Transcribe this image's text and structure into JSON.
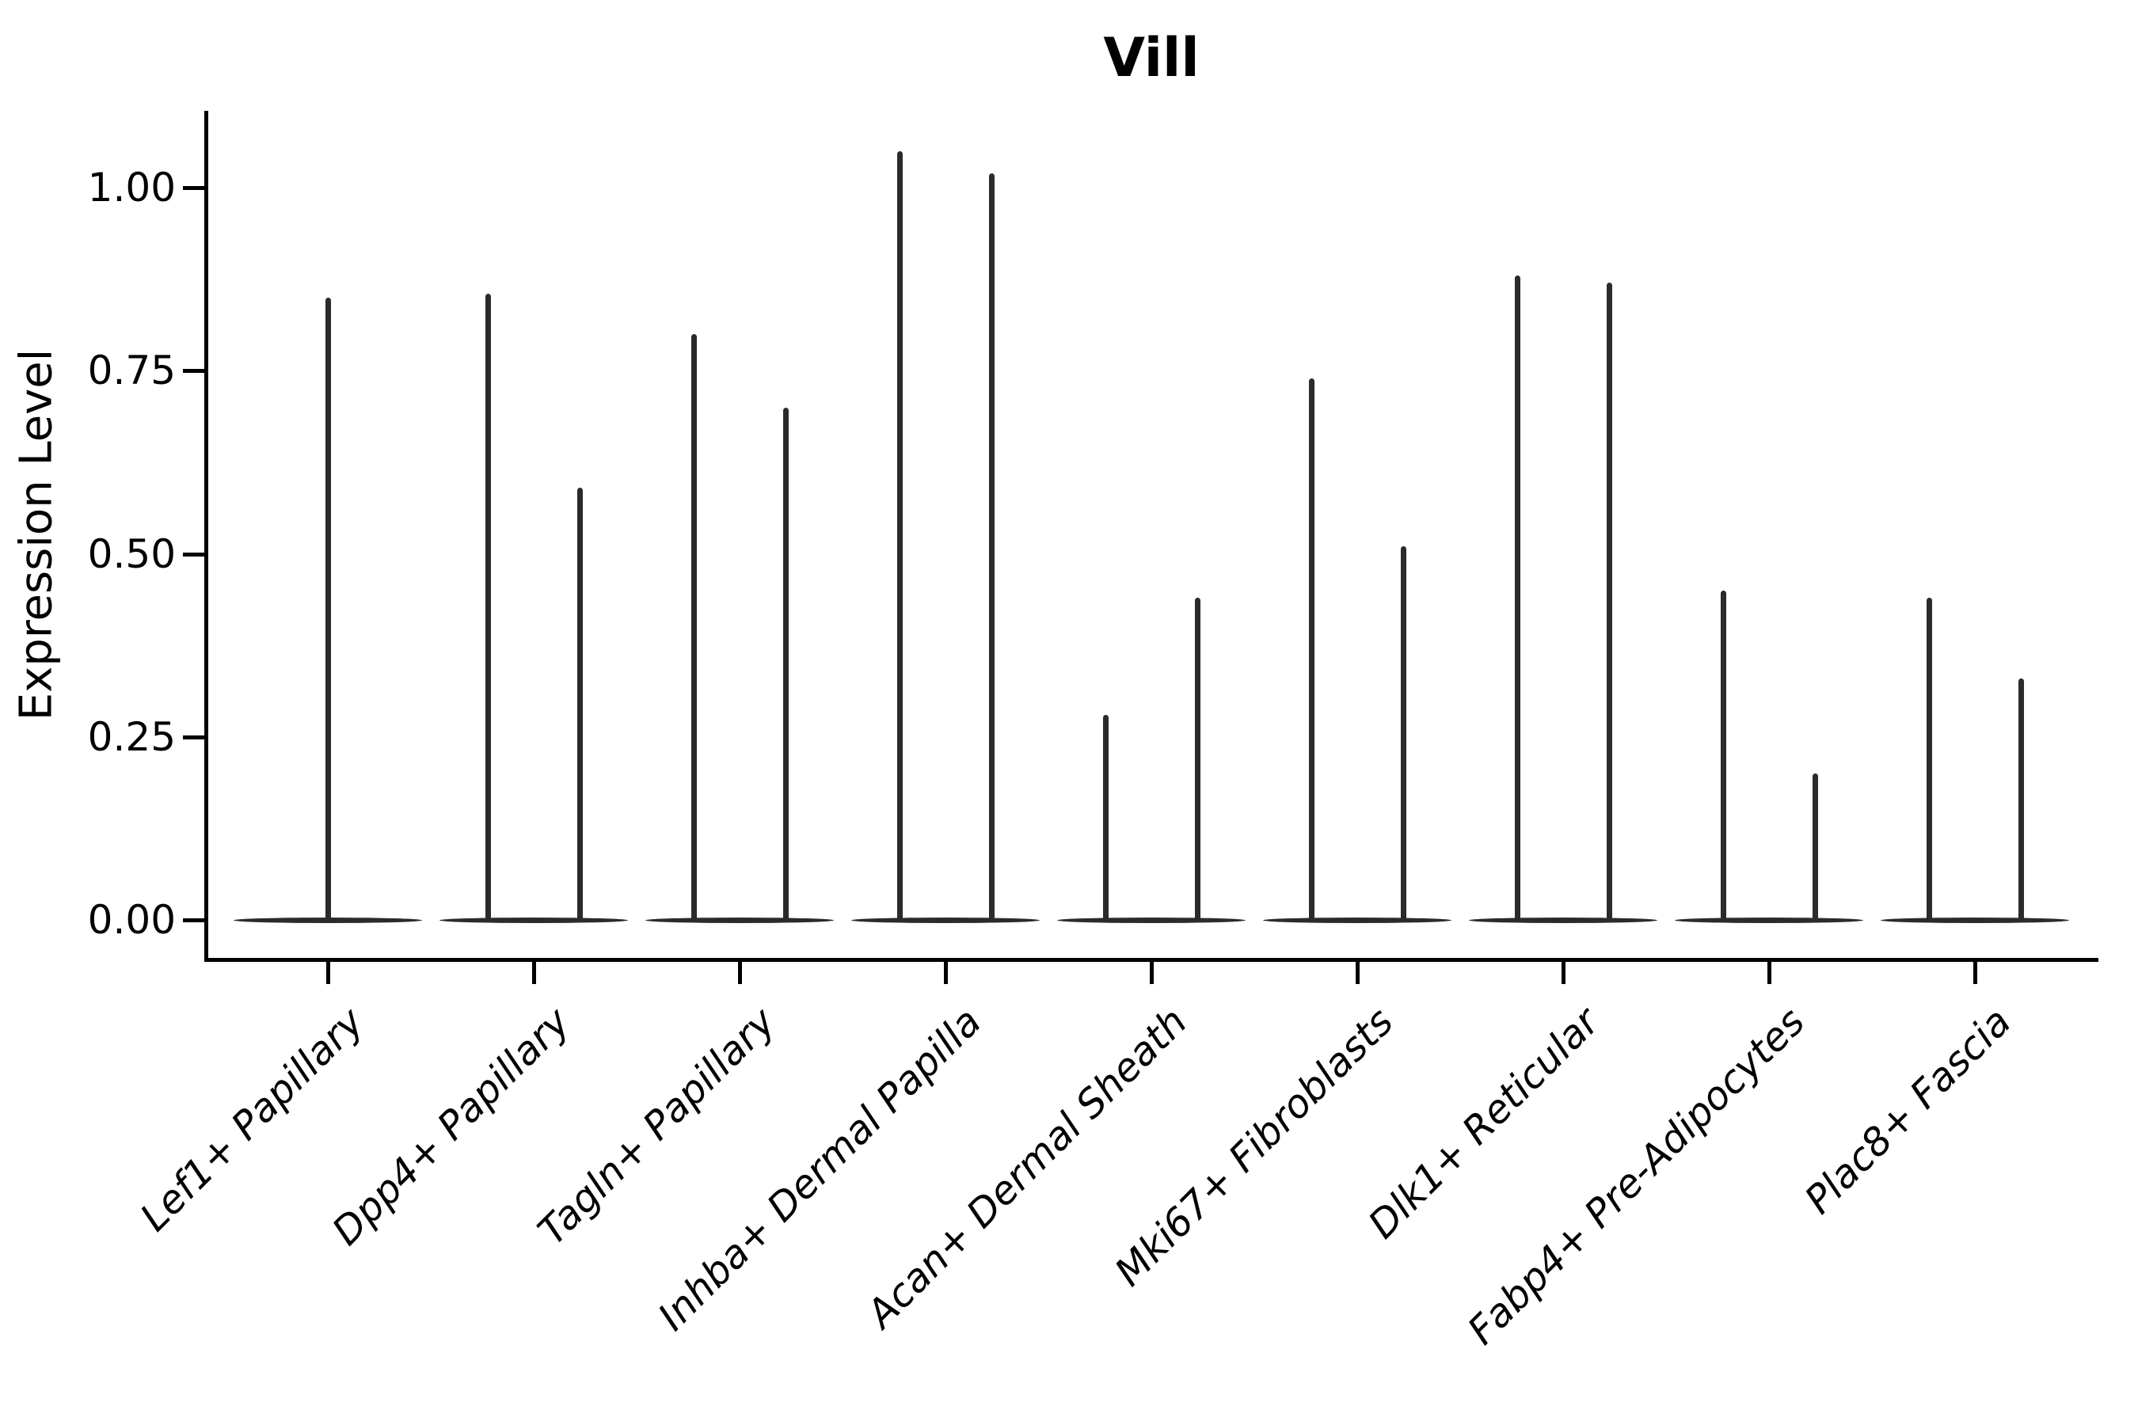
{
  "chart_data": {
    "type": "violin",
    "title": "Vill",
    "ylabel": "Expression Level",
    "xlabel": "",
    "ylim": [
      -0.05,
      1.1
    ],
    "grid": false,
    "legend": "none",
    "y_ticks": [
      {
        "label": "0.00",
        "value": 0.0
      },
      {
        "label": "0.25",
        "value": 0.25
      },
      {
        "label": "0.50",
        "value": 0.5
      },
      {
        "label": "0.75",
        "value": 0.75
      },
      {
        "label": "1.00",
        "value": 1.0
      }
    ],
    "description": "Single-gene violin plot; expression is near zero for most cells so each violin renders as a flat base at 0 with a thin spike up to the maximum expression value. Categories 2-9 contain two side-by-side violins; category 1 contains one full-width violin.",
    "categories": [
      {
        "label": "Lef1+ Papillary",
        "violins": [
          {
            "dx": 0,
            "max": 0.85
          }
        ]
      },
      {
        "label": "Dpp4+ Papillary",
        "violins": [
          {
            "dx": -58,
            "max": 0.855
          },
          {
            "dx": 58,
            "max": 0.59
          }
        ]
      },
      {
        "label": "Tagln+ Papillary",
        "violins": [
          {
            "dx": -58,
            "max": 0.8
          },
          {
            "dx": 58,
            "max": 0.7
          }
        ]
      },
      {
        "label": "Inhba+ Dermal Papilla",
        "violins": [
          {
            "dx": -58,
            "max": 1.05
          },
          {
            "dx": 58,
            "max": 1.02
          }
        ]
      },
      {
        "label": "Acan+ Dermal Sheath",
        "violins": [
          {
            "dx": -58,
            "max": 0.28
          },
          {
            "dx": 58,
            "max": 0.44
          }
        ]
      },
      {
        "label": "Mki67+ Fibroblasts",
        "violins": [
          {
            "dx": -58,
            "max": 0.74
          },
          {
            "dx": 58,
            "max": 0.51
          }
        ]
      },
      {
        "label": "Dlk1+ Reticular",
        "violins": [
          {
            "dx": -58,
            "max": 0.88
          },
          {
            "dx": 58,
            "max": 0.87
          }
        ]
      },
      {
        "label": "Fabp4+ Pre-Adipocytes",
        "violins": [
          {
            "dx": -58,
            "max": 0.45
          },
          {
            "dx": 58,
            "max": 0.2
          }
        ]
      },
      {
        "label": "Plac8+ Fascia",
        "violins": [
          {
            "dx": -58,
            "max": 0.44
          },
          {
            "dx": 58,
            "max": 0.33
          }
        ]
      }
    ],
    "colors": {
      "violin_line": "#2b2b2b",
      "axis": "#000000",
      "text": "#000000",
      "background": "#ffffff"
    }
  }
}
